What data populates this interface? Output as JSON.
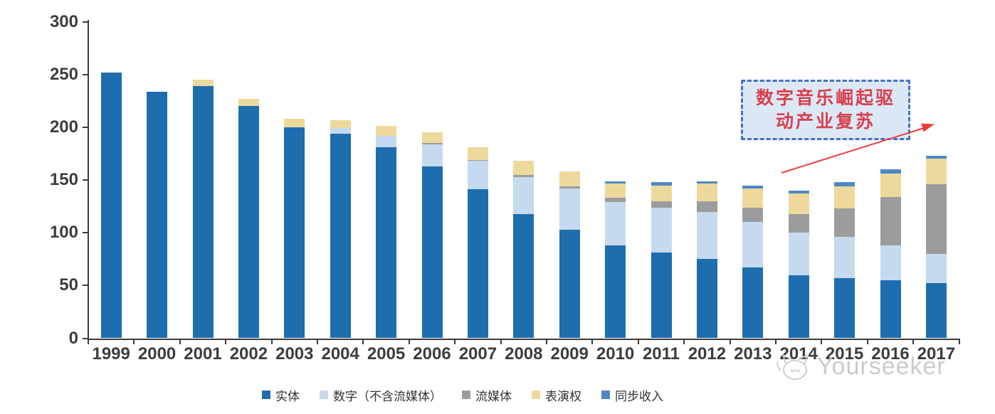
{
  "chart_data": {
    "type": "bar",
    "stacked": true,
    "categories": [
      "1999",
      "2000",
      "2001",
      "2002",
      "2003",
      "2004",
      "2005",
      "2006",
      "2007",
      "2008",
      "2009",
      "2010",
      "2011",
      "2012",
      "2013",
      "2014",
      "2015",
      "2016",
      "2017"
    ],
    "series": [
      {
        "name": "实体",
        "color": "#1E6DAE",
        "values": [
          252,
          234,
          239,
          220,
          200,
          194,
          181,
          163,
          141,
          118,
          103,
          88,
          81,
          75,
          67,
          60,
          57,
          55,
          52
        ]
      },
      {
        "name": "数字（不含流媒体）",
        "color": "#C5DAEE",
        "values": [
          0,
          0,
          0,
          0,
          0,
          5,
          11,
          21,
          27,
          35,
          39,
          41,
          43,
          45,
          43,
          40,
          39,
          33,
          28
        ]
      },
      {
        "name": "流媒体",
        "color": "#9C9C9C",
        "values": [
          0,
          0,
          0,
          0,
          0,
          0,
          0,
          1,
          1,
          2,
          2,
          4,
          6,
          10,
          14,
          18,
          27,
          46,
          66
        ]
      },
      {
        "name": "表演权",
        "color": "#EDD99C",
        "values": [
          0,
          0,
          6,
          7,
          8,
          8,
          9,
          10,
          12,
          13,
          14,
          14,
          15,
          17,
          18,
          19,
          21,
          22,
          24
        ]
      },
      {
        "name": "同步收入",
        "color": "#4D89C4",
        "values": [
          0,
          0,
          0,
          0,
          0,
          0,
          0,
          0,
          0,
          0,
          0,
          2,
          3,
          2,
          3,
          3,
          4,
          4,
          3
        ]
      }
    ],
    "y_axis": {
      "min": 0,
      "max": 300,
      "tick_step": 50,
      "ticks": [
        0,
        50,
        100,
        150,
        200,
        250,
        300
      ]
    },
    "x_axis": {
      "ticks_between_categories": true
    },
    "grid": false,
    "legend_position": "bottom",
    "title": "",
    "xlabel": "",
    "ylabel": ""
  },
  "annotation": {
    "lines": [
      "数字音乐崛起驱",
      "动产业复苏"
    ],
    "full_text": "数字音乐崛起驱动产业复苏",
    "text_color": "#D8404D",
    "box_fill": "#DCE8F6",
    "box_border_color": "#4472C4",
    "arrow_color": "#F03B3B"
  },
  "watermark": {
    "text": "Yourseeker",
    "logo_icon": "cat-logo-icon",
    "color": "#C7C7C7"
  }
}
